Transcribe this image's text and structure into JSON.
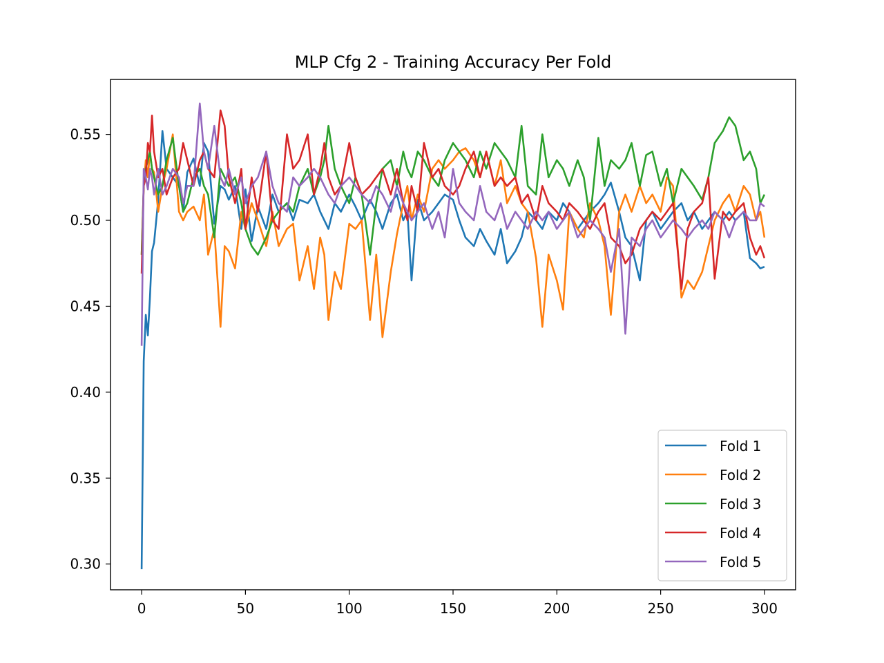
{
  "chart_data": {
    "type": "line",
    "title": "MLP Cfg 2 - Training Accuracy Per Fold",
    "xlabel": "",
    "ylabel": "",
    "xlim": [
      -15,
      315
    ],
    "ylim": [
      0.285,
      0.582
    ],
    "x_ticks": [
      0,
      50,
      100,
      150,
      200,
      250,
      300
    ],
    "y_ticks": [
      0.3,
      0.35,
      0.4,
      0.45,
      0.5,
      0.55
    ],
    "x_tick_labels": [
      "0",
      "50",
      "100",
      "150",
      "200",
      "250",
      "300"
    ],
    "y_tick_labels": [
      "0.30",
      "0.35",
      "0.40",
      "0.45",
      "0.50",
      "0.55"
    ],
    "grid": false,
    "legend_position": "lower-right",
    "x": [
      0,
      1,
      2,
      3,
      4,
      5,
      6,
      8,
      10,
      12,
      15,
      18,
      20,
      22,
      25,
      28,
      30,
      32,
      35,
      38,
      40,
      42,
      45,
      48,
      50,
      53,
      56,
      60,
      63,
      66,
      70,
      73,
      76,
      80,
      83,
      86,
      88,
      90,
      93,
      96,
      100,
      103,
      106,
      110,
      113,
      116,
      120,
      123,
      126,
      128,
      130,
      133,
      136,
      140,
      143,
      146,
      150,
      153,
      156,
      160,
      163,
      166,
      170,
      173,
      176,
      180,
      183,
      186,
      190,
      193,
      196,
      200,
      203,
      206,
      210,
      213,
      216,
      220,
      223,
      226,
      230,
      233,
      236,
      240,
      243,
      246,
      250,
      253,
      256,
      260,
      263,
      266,
      270,
      273,
      276,
      280,
      283,
      286,
      290,
      293,
      296,
      298,
      300
    ],
    "series": [
      {
        "name": "Fold 1",
        "color": "#1f77b4",
        "values": [
          0.297,
          0.418,
          0.445,
          0.433,
          0.455,
          0.482,
          0.487,
          0.512,
          0.552,
          0.53,
          0.525,
          0.52,
          0.505,
          0.528,
          0.536,
          0.52,
          0.545,
          0.54,
          0.498,
          0.52,
          0.518,
          0.512,
          0.52,
          0.495,
          0.518,
          0.488,
          0.508,
          0.495,
          0.515,
          0.505,
          0.51,
          0.5,
          0.512,
          0.51,
          0.515,
          0.505,
          0.5,
          0.495,
          0.51,
          0.505,
          0.515,
          0.508,
          0.5,
          0.512,
          0.505,
          0.495,
          0.51,
          0.515,
          0.5,
          0.505,
          0.465,
          0.512,
          0.5,
          0.505,
          0.51,
          0.515,
          0.512,
          0.5,
          0.49,
          0.485,
          0.495,
          0.488,
          0.48,
          0.495,
          0.475,
          0.482,
          0.49,
          0.505,
          0.5,
          0.495,
          0.505,
          0.5,
          0.51,
          0.505,
          0.495,
          0.5,
          0.505,
          0.51,
          0.515,
          0.522,
          0.505,
          0.49,
          0.485,
          0.465,
          0.5,
          0.505,
          0.495,
          0.5,
          0.505,
          0.51,
          0.5,
          0.505,
          0.495,
          0.5,
          0.505,
          0.5,
          0.505,
          0.5,
          0.505,
          0.478,
          0.475,
          0.472,
          0.473
        ]
      },
      {
        "name": "Fold 2",
        "color": "#ff7f0e",
        "values": [
          0.48,
          0.52,
          0.535,
          0.525,
          0.54,
          0.53,
          0.528,
          0.505,
          0.52,
          0.53,
          0.55,
          0.505,
          0.5,
          0.505,
          0.508,
          0.5,
          0.515,
          0.48,
          0.495,
          0.438,
          0.485,
          0.482,
          0.472,
          0.505,
          0.495,
          0.51,
          0.5,
          0.485,
          0.505,
          0.485,
          0.495,
          0.498,
          0.465,
          0.485,
          0.46,
          0.49,
          0.48,
          0.442,
          0.47,
          0.46,
          0.498,
          0.495,
          0.5,
          0.442,
          0.48,
          0.432,
          0.47,
          0.492,
          0.51,
          0.52,
          0.5,
          0.515,
          0.505,
          0.53,
          0.535,
          0.53,
          0.535,
          0.54,
          0.542,
          0.535,
          0.525,
          0.54,
          0.52,
          0.535,
          0.51,
          0.52,
          0.51,
          0.505,
          0.478,
          0.438,
          0.48,
          0.465,
          0.448,
          0.505,
          0.495,
          0.49,
          0.51,
          0.5,
          0.485,
          0.445,
          0.505,
          0.515,
          0.505,
          0.52,
          0.51,
          0.515,
          0.505,
          0.525,
          0.52,
          0.455,
          0.465,
          0.46,
          0.47,
          0.485,
          0.5,
          0.51,
          0.515,
          0.505,
          0.52,
          0.515,
          0.5,
          0.505,
          0.49
        ]
      },
      {
        "name": "Fold 3",
        "color": "#2ca02c",
        "values": [
          0.48,
          0.52,
          0.53,
          0.535,
          0.54,
          0.53,
          0.525,
          0.515,
          0.52,
          0.535,
          0.548,
          0.52,
          0.505,
          0.51,
          0.525,
          0.53,
          0.52,
          0.515,
          0.49,
          0.53,
          0.525,
          0.52,
          0.525,
          0.51,
          0.495,
          0.485,
          0.48,
          0.49,
          0.5,
          0.505,
          0.51,
          0.505,
          0.52,
          0.53,
          0.515,
          0.525,
          0.535,
          0.555,
          0.53,
          0.52,
          0.51,
          0.525,
          0.515,
          0.48,
          0.51,
          0.53,
          0.535,
          0.52,
          0.54,
          0.53,
          0.525,
          0.54,
          0.535,
          0.525,
          0.52,
          0.535,
          0.545,
          0.54,
          0.535,
          0.525,
          0.54,
          0.53,
          0.545,
          0.54,
          0.535,
          0.525,
          0.555,
          0.52,
          0.515,
          0.55,
          0.525,
          0.535,
          0.53,
          0.52,
          0.535,
          0.525,
          0.5,
          0.548,
          0.52,
          0.535,
          0.53,
          0.535,
          0.545,
          0.52,
          0.538,
          0.54,
          0.52,
          0.53,
          0.51,
          0.53,
          0.525,
          0.52,
          0.512,
          0.525,
          0.545,
          0.552,
          0.56,
          0.555,
          0.535,
          0.54,
          0.53,
          0.51,
          0.515
        ]
      },
      {
        "name": "Fold 4",
        "color": "#d62728",
        "values": [
          0.469,
          0.52,
          0.525,
          0.545,
          0.54,
          0.561,
          0.54,
          0.525,
          0.53,
          0.515,
          0.525,
          0.53,
          0.545,
          0.535,
          0.52,
          0.535,
          0.54,
          0.53,
          0.525,
          0.564,
          0.555,
          0.525,
          0.51,
          0.53,
          0.495,
          0.525,
          0.505,
          0.54,
          0.5,
          0.495,
          0.55,
          0.53,
          0.535,
          0.55,
          0.515,
          0.53,
          0.545,
          0.525,
          0.515,
          0.52,
          0.545,
          0.525,
          0.515,
          0.52,
          0.525,
          0.53,
          0.515,
          0.53,
          0.51,
          0.5,
          0.52,
          0.505,
          0.545,
          0.525,
          0.53,
          0.52,
          0.515,
          0.52,
          0.53,
          0.54,
          0.525,
          0.54,
          0.52,
          0.525,
          0.52,
          0.525,
          0.51,
          0.515,
          0.5,
          0.52,
          0.51,
          0.505,
          0.5,
          0.51,
          0.505,
          0.5,
          0.495,
          0.505,
          0.51,
          0.49,
          0.485,
          0.475,
          0.48,
          0.495,
          0.5,
          0.505,
          0.5,
          0.505,
          0.51,
          0.46,
          0.495,
          0.505,
          0.51,
          0.525,
          0.466,
          0.505,
          0.5,
          0.505,
          0.51,
          0.49,
          0.48,
          0.485,
          0.478
        ]
      },
      {
        "name": "Fold 5",
        "color": "#9467bd",
        "values": [
          0.427,
          0.53,
          0.525,
          0.518,
          0.53,
          0.525,
          0.515,
          0.53,
          0.515,
          0.52,
          0.53,
          0.525,
          0.51,
          0.52,
          0.52,
          0.568,
          0.54,
          0.53,
          0.555,
          0.525,
          0.52,
          0.53,
          0.515,
          0.525,
          0.51,
          0.52,
          0.525,
          0.54,
          0.52,
          0.51,
          0.505,
          0.525,
          0.52,
          0.525,
          0.53,
          0.525,
          0.52,
          0.515,
          0.51,
          0.52,
          0.525,
          0.52,
          0.515,
          0.51,
          0.52,
          0.515,
          0.505,
          0.52,
          0.51,
          0.505,
          0.5,
          0.505,
          0.51,
          0.495,
          0.505,
          0.49,
          0.53,
          0.51,
          0.505,
          0.5,
          0.52,
          0.505,
          0.5,
          0.51,
          0.495,
          0.505,
          0.5,
          0.495,
          0.505,
          0.5,
          0.505,
          0.495,
          0.5,
          0.505,
          0.49,
          0.495,
          0.5,
          0.495,
          0.49,
          0.47,
          0.495,
          0.434,
          0.49,
          0.485,
          0.495,
          0.5,
          0.49,
          0.495,
          0.5,
          0.495,
          0.49,
          0.495,
          0.5,
          0.495,
          0.505,
          0.5,
          0.49,
          0.5,
          0.505,
          0.5,
          0.5,
          0.51,
          0.508
        ]
      }
    ]
  }
}
